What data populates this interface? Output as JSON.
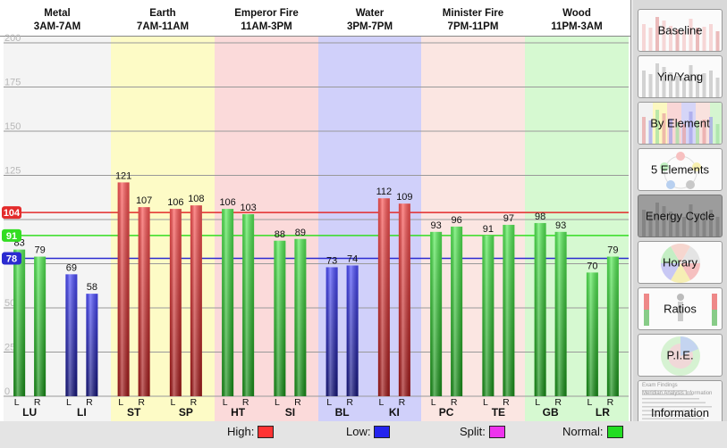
{
  "chart_data": {
    "type": "bar",
    "ylim": [
      0,
      200
    ],
    "yticks": [
      "0",
      "25",
      "50",
      "75",
      "100",
      "125",
      "150",
      "175",
      "200"
    ],
    "ytick_values": [
      0,
      25,
      50,
      75,
      100,
      125,
      150,
      175,
      200
    ],
    "bands": [
      {
        "name": "Metal",
        "time": "3AM-7AM",
        "color": "#f4f4f4"
      },
      {
        "name": "Earth",
        "time": "7AM-11AM",
        "color": "#fdfbc6"
      },
      {
        "name": "Emperor Fire",
        "time": "11AM-3PM",
        "color": "#fbdada"
      },
      {
        "name": "Water",
        "time": "3PM-7PM",
        "color": "#d0d0fa"
      },
      {
        "name": "Minister Fire",
        "time": "7PM-11PM",
        "color": "#fbe6e2"
      },
      {
        "name": "Wood",
        "time": "11PM-3AM",
        "color": "#d6f9d1"
      }
    ],
    "meridians": [
      {
        "name": "LU",
        "left": 83,
        "right": 79,
        "colors": [
          "green",
          "green"
        ]
      },
      {
        "name": "LI",
        "left": 69,
        "right": 58,
        "colors": [
          "blue",
          "blue"
        ]
      },
      {
        "name": "ST",
        "left": 121,
        "right": 107,
        "colors": [
          "red",
          "red"
        ]
      },
      {
        "name": "SP",
        "left": 106,
        "right": 108,
        "colors": [
          "red",
          "red"
        ]
      },
      {
        "name": "HT",
        "left": 106,
        "right": 103,
        "colors": [
          "green",
          "green"
        ]
      },
      {
        "name": "SI",
        "left": 88,
        "right": 89,
        "colors": [
          "green",
          "green"
        ]
      },
      {
        "name": "BL",
        "left": 73,
        "right": 74,
        "colors": [
          "blue",
          "blue"
        ]
      },
      {
        "name": "KI",
        "left": 112,
        "right": 109,
        "colors": [
          "red",
          "red"
        ]
      },
      {
        "name": "PC",
        "left": 93,
        "right": 96,
        "colors": [
          "green",
          "green"
        ]
      },
      {
        "name": "TE",
        "left": 91,
        "right": 97,
        "colors": [
          "green",
          "green"
        ]
      },
      {
        "name": "GB",
        "left": 98,
        "right": 93,
        "colors": [
          "green",
          "green"
        ]
      },
      {
        "name": "LR",
        "left": 70,
        "right": 79,
        "colors": [
          "green",
          "green"
        ]
      }
    ],
    "side_labels": [
      "L",
      "R"
    ],
    "thresholds": [
      {
        "label": "104",
        "value": 104,
        "color": "#e32b2b"
      },
      {
        "label": "91",
        "value": 91,
        "color": "#33dd22"
      },
      {
        "label": "78",
        "value": 78,
        "color": "#2b2bd0"
      }
    ]
  },
  "colors": {
    "red": "#e02424",
    "blue": "#2a2ad8",
    "green": "#2ed62e",
    "gridline": "#999999"
  },
  "legend": [
    {
      "label": "High:",
      "color": "#ff3333"
    },
    {
      "label": "Low:",
      "color": "#2424ee"
    },
    {
      "label": "Split:",
      "color": "#ee33ee"
    },
    {
      "label": "Normal:",
      "color": "#22dd22"
    }
  ],
  "sidebar": {
    "buttons": [
      {
        "label": "Baseline",
        "thumb": "bars",
        "active": false
      },
      {
        "label": "Yin/Yang",
        "thumb": "bars-gray",
        "active": false
      },
      {
        "label": "By Element",
        "thumb": "bands",
        "active": false
      },
      {
        "label": "5 Elements",
        "thumb": "circle-nodes",
        "active": false
      },
      {
        "label": "Energy Cycle",
        "thumb": "dark-bars",
        "active": true
      },
      {
        "label": "Horary",
        "thumb": "pie",
        "active": false
      },
      {
        "label": "Ratios",
        "thumb": "ratio-figure",
        "active": false
      },
      {
        "label": "P.I.E.",
        "thumb": "pie-ring",
        "active": false
      },
      {
        "label": "Information",
        "thumb": "document",
        "active": false
      }
    ],
    "info_preview": [
      "Exam Findings",
      "Meridian Analysis Information"
    ]
  }
}
